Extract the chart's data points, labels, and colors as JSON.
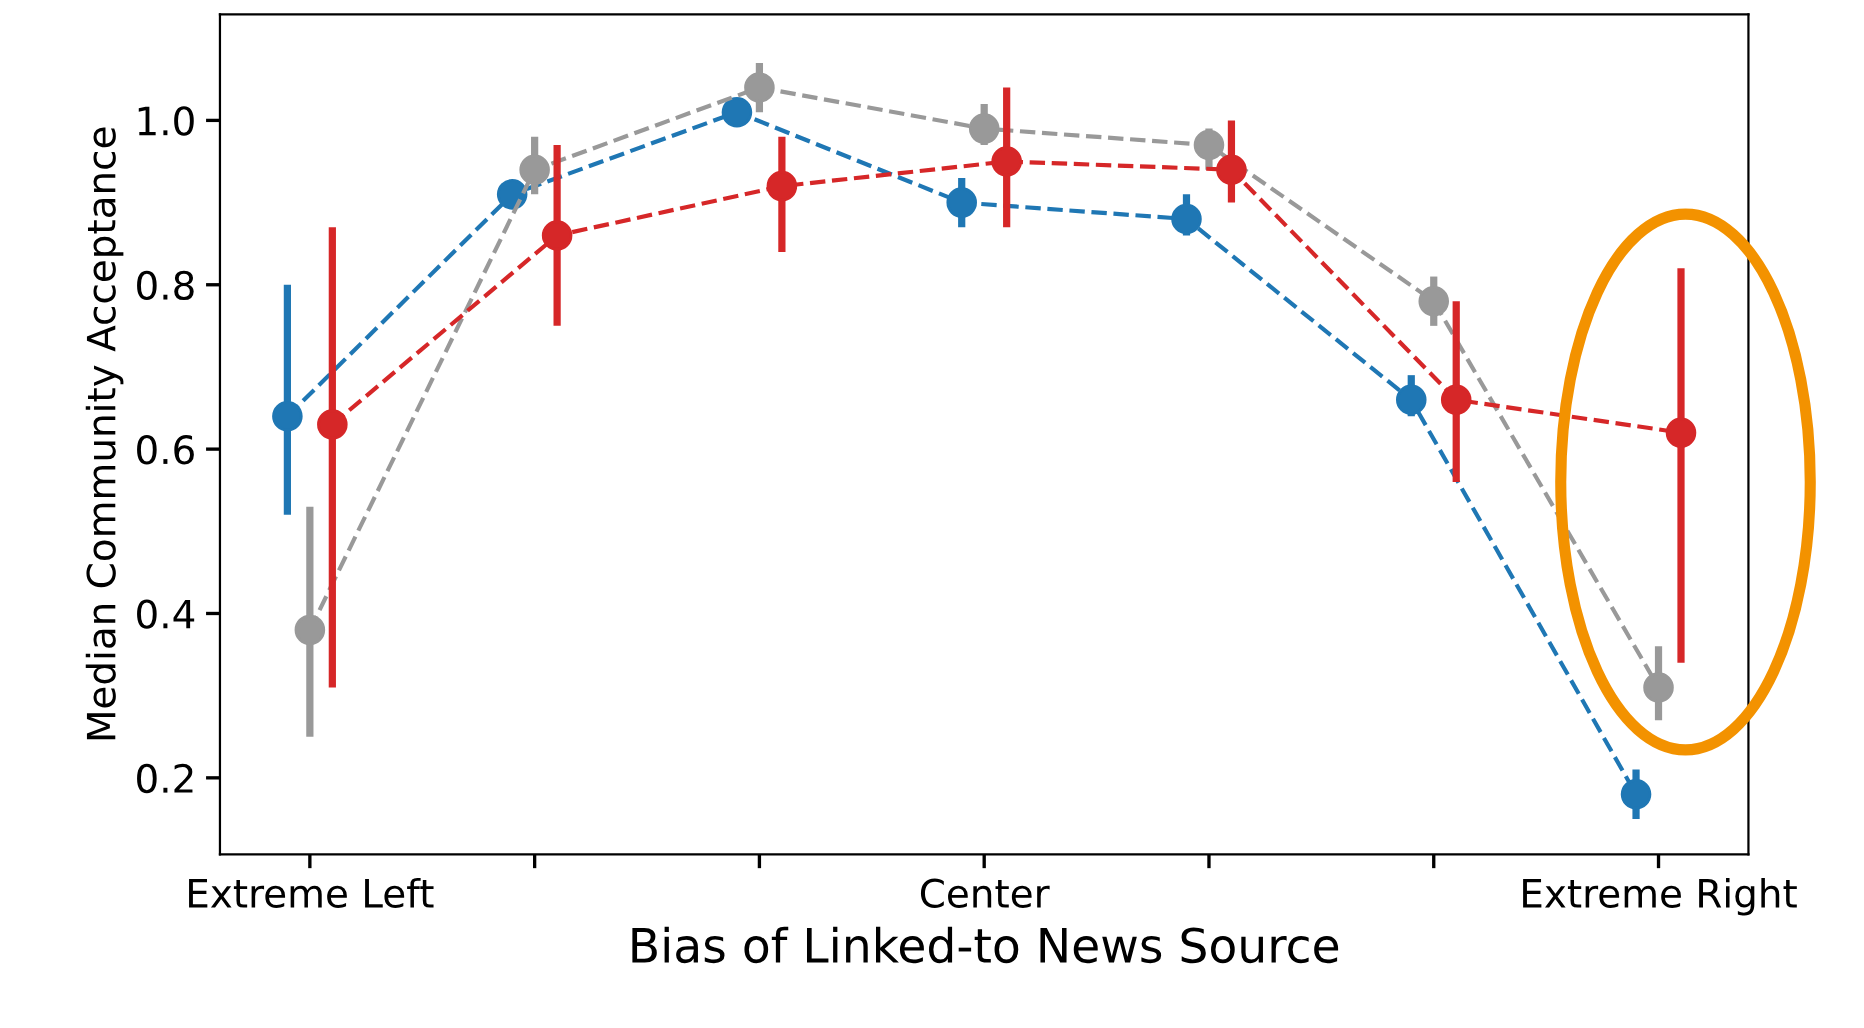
{
  "chart_data": {
    "type": "line",
    "xlabel": "Bias of Linked-to News Source",
    "ylabel": "Median Community Acceptance",
    "categories": [
      "Extreme Left",
      null,
      null,
      "Center",
      null,
      null,
      "Extreme Right"
    ],
    "ylim": [
      0.107,
      1.129
    ],
    "yticks": [
      0.2,
      0.4,
      0.6,
      0.8,
      {
        "value": 1,
        "label": "1.0"
      }
    ],
    "grid": false,
    "legend": false,
    "marker": "circle",
    "line_style": "dashed",
    "series": [
      {
        "color": "#1f77b4",
        "values": [
          0.64,
          0.91,
          1.01,
          0.9,
          0.88,
          0.66,
          0.18
        ],
        "errors": [
          [
            0.52,
            0.8
          ],
          null,
          null,
          [
            0.87,
            0.93
          ],
          [
            0.86,
            0.91
          ],
          [
            0.64,
            0.69
          ],
          [
            0.15,
            0.21
          ]
        ]
      },
      {
        "color": "#999999",
        "values": [
          0.38,
          0.94,
          1.04,
          0.99,
          0.97,
          0.78,
          0.31
        ],
        "errors": [
          [
            0.25,
            0.53
          ],
          [
            0.91,
            0.98
          ],
          [
            1.01,
            1.07
          ],
          [
            0.97,
            1.02
          ],
          [
            0.94,
            0.99
          ],
          [
            0.75,
            0.81
          ],
          [
            0.27,
            0.36
          ]
        ]
      },
      {
        "color": "#d62728",
        "values": [
          0.63,
          0.86,
          0.92,
          0.95,
          0.94,
          0.66,
          0.62
        ],
        "errors": [
          [
            0.31,
            0.87
          ],
          [
            0.75,
            0.97
          ],
          [
            0.84,
            0.98
          ],
          [
            0.87,
            1.04
          ],
          [
            0.9,
            1.0
          ],
          [
            0.56,
            0.78
          ],
          [
            0.34,
            0.82
          ]
        ]
      }
    ]
  }
}
